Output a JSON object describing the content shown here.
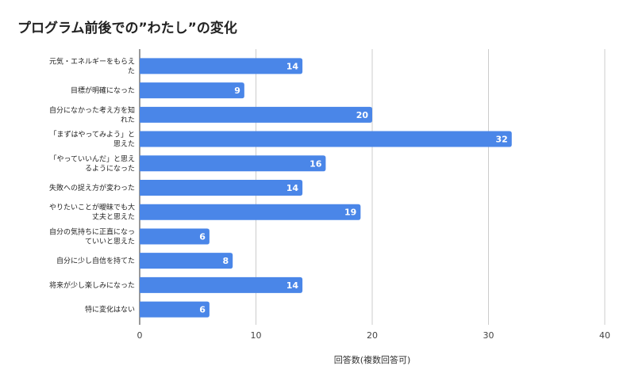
{
  "chart_data": {
    "type": "bar",
    "orientation": "horizontal",
    "title": "プログラム前後での”わたし”の変化",
    "x_label": "回答数(複数回答可)",
    "categories": [
      "元気・エネルギーをもらえた",
      "目標が明確になった",
      "自分になかった考え方を知れた",
      "「まずはやってみよう」と思えた",
      "「やっていいんだ」と思えるようになった",
      "失敗への捉え方が変わった",
      "やりたいことが曖昧でも大丈夫と思えた",
      "自分の気持ちに正直になっていいと思えた",
      "自分に少し自信を持てた",
      "将来が少し楽しみになった",
      "特に変化はない"
    ],
    "values": [
      14,
      9,
      20,
      32,
      16,
      14,
      19,
      6,
      8,
      14,
      6
    ],
    "color": "#4a86e8",
    "xlim": [
      0,
      40
    ],
    "xticks": [
      0,
      10,
      20,
      30,
      40
    ],
    "grid": true
  }
}
